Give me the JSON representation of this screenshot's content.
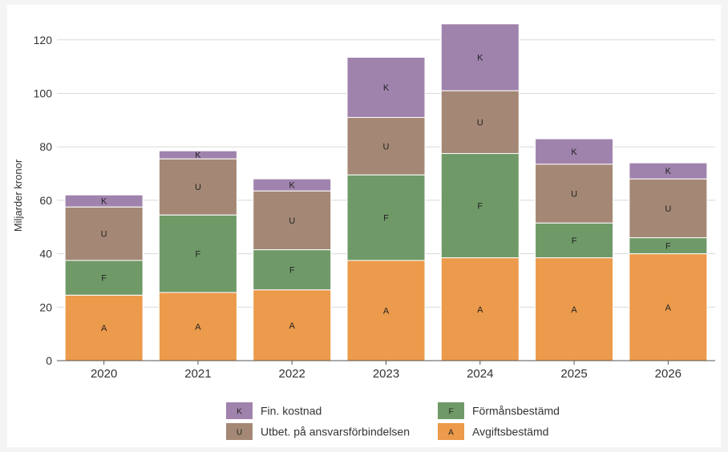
{
  "chart_data": {
    "type": "bar",
    "stacked": true,
    "title": "",
    "xlabel": "",
    "ylabel": "Miljarder kronor",
    "ylim": [
      0,
      130
    ],
    "yticks": [
      0,
      20,
      40,
      60,
      80,
      100,
      120
    ],
    "grid": true,
    "legend_position": "bottom",
    "categories": [
      "2020",
      "2021",
      "2022",
      "2023",
      "2024",
      "2025",
      "2026"
    ],
    "series": [
      {
        "name": "Avgiftsbestämd",
        "code": "A",
        "color": "#ec9a4b",
        "values": [
          24.5,
          25.5,
          26.5,
          37.5,
          38.5,
          38.5,
          40
        ]
      },
      {
        "name": "Förmånsbestämd",
        "code": "F",
        "color": "#6f9a68",
        "values": [
          13,
          29,
          15,
          32,
          39,
          13,
          6
        ]
      },
      {
        "name": "Utbet. på ansvarsförbindelsen",
        "code": "U",
        "color": "#a48875",
        "values": [
          20,
          21,
          22,
          21.5,
          23.5,
          22,
          22
        ]
      },
      {
        "name": "Fin. kostnad",
        "code": "K",
        "color": "#a083ad",
        "values": [
          4.5,
          3,
          4.5,
          22.5,
          25,
          9.5,
          6
        ]
      }
    ],
    "legend_order": [
      "Fin. kostnad",
      "Förmånsbestämd",
      "Utbet. på ansvarsförbindelsen",
      "Avgiftsbestämd"
    ]
  }
}
